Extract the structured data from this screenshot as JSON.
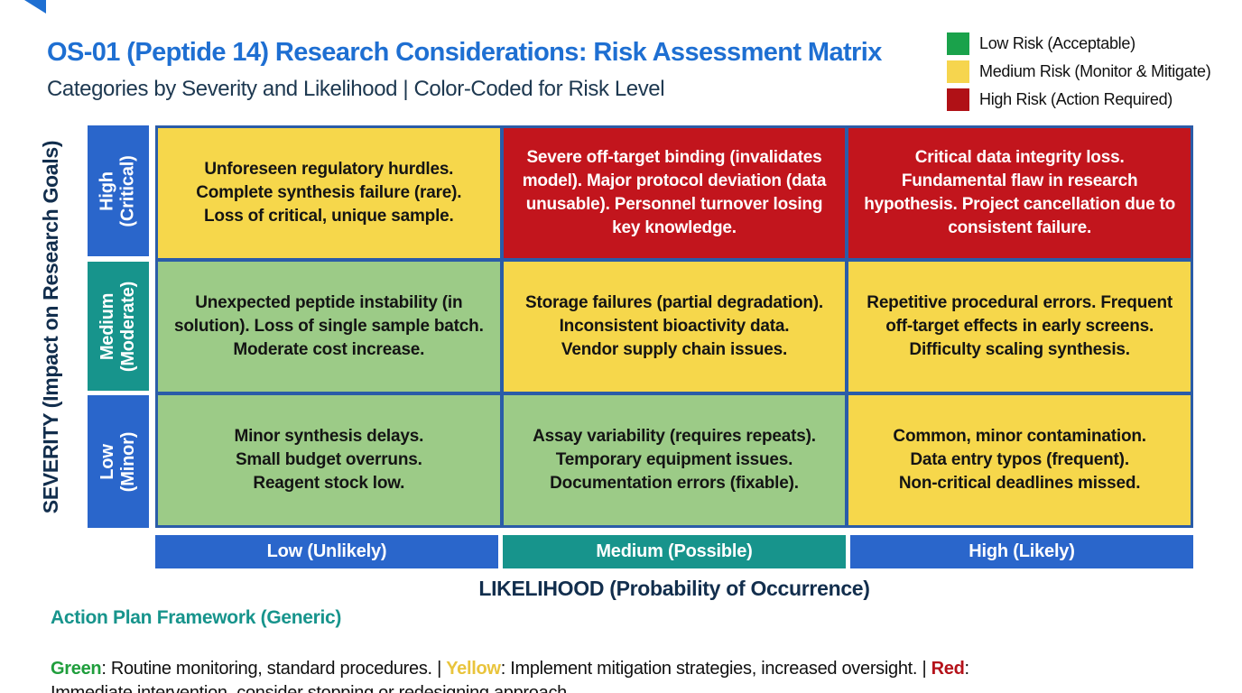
{
  "header": {
    "title": "OS-01 (Peptide 14) Research Considerations: Risk Assessment Matrix",
    "subtitle": "Categories by Severity and Likelihood | Color-Coded for Risk Level"
  },
  "legend": {
    "items": [
      {
        "label": "Low Risk (Acceptable)",
        "color": "#1aa24b"
      },
      {
        "label": "Medium Risk (Monitor & Mitigate)",
        "color": "#f6d54e"
      },
      {
        "label": "High Risk (Action Required)",
        "color": "#b01116"
      }
    ]
  },
  "matrix": {
    "y_axis_label": "SEVERITY (Impact on Research Goals)",
    "x_axis_label": "LIKELIHOOD (Probability of Occurrence)",
    "rows": [
      {
        "label": "High\n(Critical)",
        "color": "#2a66cb"
      },
      {
        "label": "Medium\n(Moderate)",
        "color": "#17948c"
      },
      {
        "label": "Low\n(Minor)",
        "color": "#2a66cb"
      }
    ],
    "columns": [
      {
        "label": "Low (Unlikely)",
        "color": "#2a66cb"
      },
      {
        "label": "Medium (Possible)",
        "color": "#17948c"
      },
      {
        "label": "High (Likely)",
        "color": "#2a66cb"
      }
    ],
    "cells": [
      [
        {
          "risk": "medium",
          "text": "Unforeseen regulatory hurdles.\nComplete synthesis failure (rare).\nLoss of critical, unique sample."
        },
        {
          "risk": "high",
          "text": "Severe off-target binding (invalidates model). Major protocol deviation (data unusable). Personnel turnover losing key knowledge."
        },
        {
          "risk": "high",
          "text": "Critical data integrity loss. Fundamental flaw in research hypothesis. Project cancellation due to consistent failure."
        }
      ],
      [
        {
          "risk": "low",
          "text": "Unexpected peptide instability (in solution). Loss of single sample batch. Moderate cost increase."
        },
        {
          "risk": "medium",
          "text": "Storage failures (partial degradation). Inconsistent bioactivity data.\nVendor supply chain issues."
        },
        {
          "risk": "medium",
          "text": "Repetitive procedural errors. Frequent off-target effects in early screens. Difficulty scaling synthesis."
        }
      ],
      [
        {
          "risk": "low",
          "text": "Minor synthesis delays.\nSmall budget overruns.\nReagent stock low."
        },
        {
          "risk": "low",
          "text": "Assay variability (requires repeats). Temporary equipment issues.\nDocumentation errors (fixable)."
        },
        {
          "risk": "medium",
          "text": "Common, minor contamination.\nData entry typos (frequent).\nNon-critical deadlines missed."
        }
      ]
    ]
  },
  "action_plan": {
    "heading": "Action Plan Framework (Generic)",
    "segments": [
      {
        "text": "Green",
        "color": "#1f9e3c"
      },
      {
        "text": ": Routine monitoring, standard procedures. | "
      },
      {
        "text": "Yellow",
        "color": "#e9c43c"
      },
      {
        "text": ": Implement mitigation strategies, increased oversight. | "
      },
      {
        "text": "Red",
        "color": "#b5121a"
      },
      {
        "text": ":\nImmediate intervention, consider stopping or redesigning approach."
      }
    ]
  },
  "colors": {
    "risk_low": "#9ccb87",
    "risk_medium": "#f6d74b",
    "risk_high": "#c2151d",
    "cell_text_dark": "#141414",
    "cell_text_light": "#ffffff",
    "grid_border": "#2a5ca8",
    "title_blue": "#1e6fd2",
    "navy": "#122e4d",
    "teal": "#17948c"
  },
  "chart_data": {
    "type": "heatmap",
    "title": "OS-01 (Peptide 14) Research Considerations: Risk Assessment Matrix",
    "subtitle": "Categories by Severity and Likelihood | Color-Coded for Risk Level",
    "xlabel": "LIKELIHOOD (Probability of Occurrence)",
    "ylabel": "SEVERITY (Impact on Research Goals)",
    "x_categories": [
      "Low (Unlikely)",
      "Medium (Possible)",
      "High (Likely)"
    ],
    "y_categories": [
      "High (Critical)",
      "Medium (Moderate)",
      "Low (Minor)"
    ],
    "cell_risk_levels": [
      [
        "medium",
        "high",
        "high"
      ],
      [
        "low",
        "medium",
        "medium"
      ],
      [
        "low",
        "low",
        "medium"
      ]
    ],
    "legend_entries": [
      "Low Risk (Acceptable)",
      "Medium Risk (Monitor & Mitigate)",
      "High Risk (Action Required)"
    ],
    "legend_position": "top-right",
    "grid": true
  }
}
